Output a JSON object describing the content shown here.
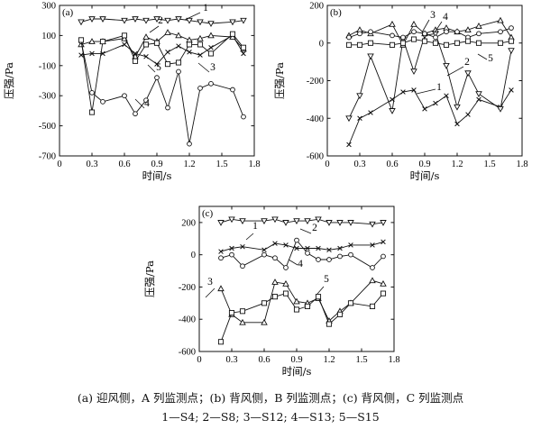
{
  "caption": {
    "line1": "(a) 迎风侧，A 列监测点；(b) 背风侧，B 列监测点；(c) 背风侧，C 列监测点",
    "line2": "1—S4; 2—S8; 3—S12; 4—S13; 5—S15"
  },
  "chart_data": [
    {
      "type": "line",
      "panel_label": "(a)",
      "xlabel": "时间/s",
      "ylabel": "压强/Pa",
      "xlim": [
        0,
        1.8
      ],
      "ylim": [
        -700,
        300
      ],
      "xticks": [
        "0",
        "0.3",
        "0.6",
        "0.9",
        "1.2",
        "1.5",
        "1.8"
      ],
      "yticks": [
        "300",
        "100",
        "-100",
        "-300",
        "-500",
        "-700"
      ],
      "x": [
        0.2,
        0.3,
        0.4,
        0.6,
        0.7,
        0.8,
        0.9,
        1.0,
        1.1,
        1.2,
        1.3,
        1.4,
        1.6,
        1.7
      ],
      "series": [
        {
          "name": "1",
          "marker": "x",
          "values": [
            -30,
            -20,
            -20,
            40,
            -20,
            -40,
            -90,
            -10,
            30,
            -10,
            -30,
            20,
            100,
            -20
          ]
        },
        {
          "name": "2",
          "marker": "tri-down",
          "values": [
            190,
            210,
            210,
            200,
            210,
            200,
            210,
            200,
            210,
            200,
            190,
            180,
            190,
            200
          ]
        },
        {
          "name": "3",
          "marker": "tri-up",
          "values": [
            40,
            60,
            60,
            80,
            -40,
            90,
            60,
            120,
            100,
            70,
            80,
            100,
            90,
            10
          ]
        },
        {
          "name": "4",
          "marker": "circle",
          "values": [
            60,
            -280,
            -340,
            -300,
            -420,
            -330,
            -180,
            -380,
            -140,
            -620,
            -250,
            -220,
            -260,
            -440
          ]
        },
        {
          "name": "5",
          "marker": "square",
          "values": [
            70,
            -410,
            60,
            100,
            -70,
            40,
            50,
            -90,
            -80,
            40,
            40,
            -20,
            110,
            20
          ]
        }
      ],
      "annotations": [
        "1",
        "2",
        "3",
        "4",
        "5"
      ]
    },
    {
      "type": "line",
      "panel_label": "(b)",
      "xlabel": "时间/s",
      "ylabel": "压强/Pa",
      "xlim": [
        0,
        1.8
      ],
      "ylim": [
        -600,
        200
      ],
      "xticks": [
        "0",
        "0.3",
        "0.6",
        "0.9",
        "1.2",
        "1.5",
        "1.8"
      ],
      "yticks": [
        "200",
        "0",
        "-200",
        "-400",
        "-600"
      ],
      "x": [
        0.2,
        0.3,
        0.4,
        0.6,
        0.7,
        0.8,
        0.9,
        1.0,
        1.1,
        1.2,
        1.3,
        1.4,
        1.6,
        1.7
      ],
      "series": [
        {
          "name": "1",
          "marker": "x",
          "values": [
            -540,
            -400,
            -370,
            -300,
            -260,
            -250,
            -350,
            -320,
            -280,
            -430,
            -380,
            -300,
            -340,
            -250
          ]
        },
        {
          "name": "2",
          "marker": "tri-down",
          "values": [
            -400,
            -280,
            -70,
            -360,
            20,
            -150,
            40,
            50,
            -120,
            -340,
            -160,
            -270,
            -350,
            -40
          ]
        },
        {
          "name": "3",
          "marker": "tri-up",
          "values": [
            40,
            70,
            50,
            100,
            -10,
            100,
            50,
            70,
            80,
            60,
            70,
            90,
            120,
            30
          ]
        },
        {
          "name": "4",
          "marker": "circle",
          "values": [
            30,
            50,
            60,
            40,
            30,
            60,
            50,
            30,
            60,
            60,
            30,
            50,
            60,
            80
          ]
        },
        {
          "name": "5",
          "marker": "square",
          "values": [
            -10,
            -10,
            0,
            -10,
            0,
            20,
            10,
            0,
            -10,
            0,
            10,
            0,
            0,
            10
          ]
        }
      ],
      "annotations": [
        "1",
        "2",
        "3",
        "4",
        "5"
      ]
    },
    {
      "type": "line",
      "panel_label": "(c)",
      "xlabel": "时间/s",
      "ylabel": "压强/Pa",
      "xlim": [
        0,
        1.8
      ],
      "ylim": [
        -600,
        300
      ],
      "xticks": [
        "0",
        "0.3",
        "0.6",
        "0.9",
        "1.2",
        "1.5",
        "1.8"
      ],
      "yticks": [
        "200",
        "0",
        "-200",
        "-400",
        "-600"
      ],
      "x": [
        0.2,
        0.3,
        0.4,
        0.6,
        0.7,
        0.8,
        0.9,
        1.0,
        1.1,
        1.2,
        1.3,
        1.4,
        1.6,
        1.7
      ],
      "series": [
        {
          "name": "1",
          "marker": "x",
          "values": [
            20,
            40,
            50,
            30,
            70,
            60,
            40,
            40,
            40,
            30,
            40,
            60,
            60,
            80
          ]
        },
        {
          "name": "2",
          "marker": "tri-down",
          "values": [
            200,
            220,
            210,
            210,
            220,
            200,
            210,
            210,
            220,
            200,
            200,
            200,
            190,
            200
          ]
        },
        {
          "name": "3",
          "marker": "tri-up",
          "values": [
            -210,
            -370,
            -420,
            -420,
            -170,
            -180,
            -290,
            -300,
            -270,
            -410,
            -350,
            -300,
            -160,
            -180
          ]
        },
        {
          "name": "4",
          "marker": "circle",
          "values": [
            -20,
            0,
            -70,
            0,
            -20,
            -80,
            90,
            10,
            -30,
            -30,
            -10,
            0,
            -80,
            -10
          ]
        },
        {
          "name": "5",
          "marker": "square",
          "values": [
            -540,
            -360,
            -350,
            -300,
            -260,
            -240,
            -340,
            -320,
            -260,
            -430,
            -370,
            -300,
            -320,
            -240
          ]
        }
      ],
      "annotations": [
        "1",
        "2",
        "3",
        "4",
        "5"
      ]
    }
  ]
}
